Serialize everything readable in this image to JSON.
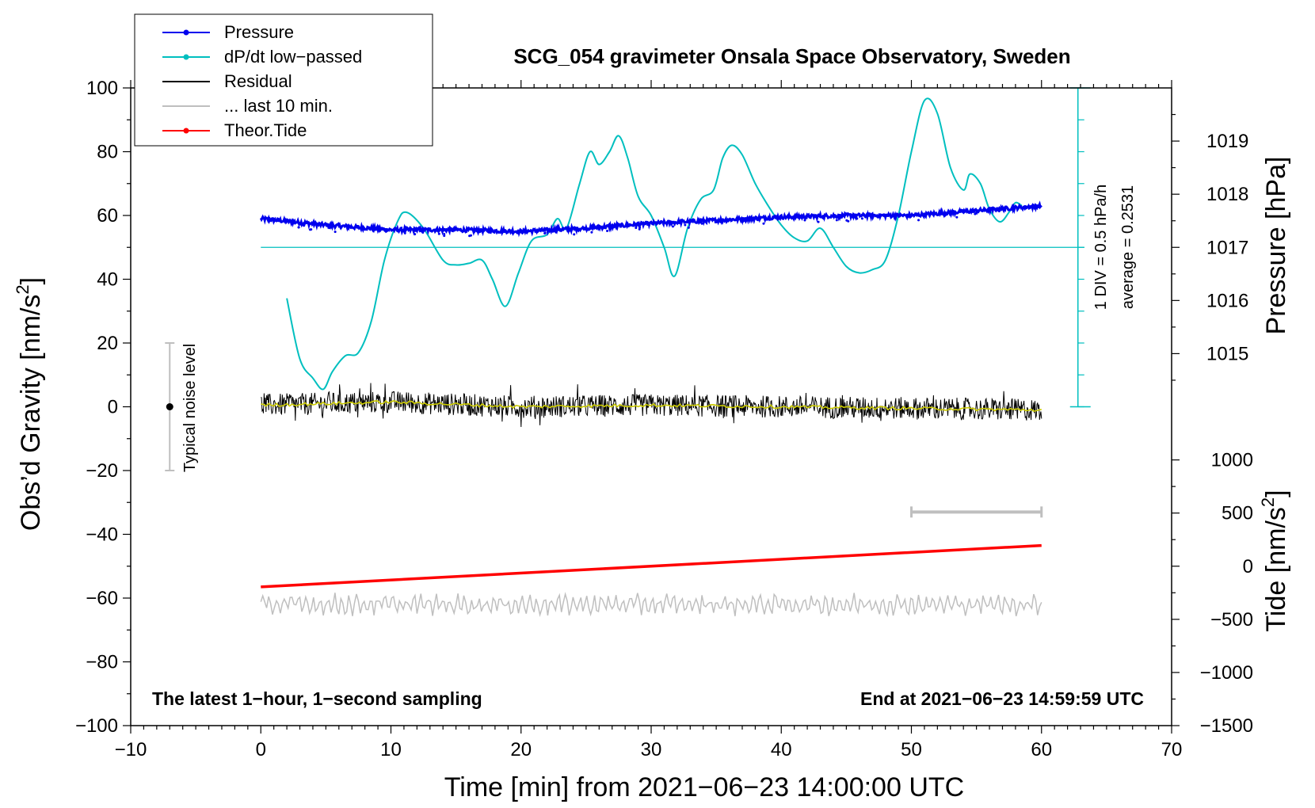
{
  "chart_data": {
    "type": "line",
    "title": "SCG_054 gravimeter Onsala Space Observatory, Sweden",
    "xlabel": "Time [min] from 2021−06−23 14:00:00 UTC",
    "ylabel_left": "Obs’d Gravity [nm/s",
    "ylabel_left_sup": "2",
    "ylabel_left_end": "]",
    "ylabel_right_pressure": "Pressure [hPa]",
    "ylabel_right_tide": "Tide [nm/s",
    "ylabel_right_tide_sup": "2",
    "ylabel_right_tide_end": "]",
    "xlim": [
      -10,
      70
    ],
    "ylim": [
      -100,
      100
    ],
    "x_ticks": [
      -10,
      0,
      10,
      20,
      30,
      40,
      50,
      60,
      70
    ],
    "x_tick_labels": [
      "−10",
      "0",
      "10",
      "20",
      "30",
      "40",
      "50",
      "60",
      "70"
    ],
    "y_ticks": [
      -100,
      -80,
      -60,
      -40,
      -20,
      0,
      20,
      40,
      60,
      80,
      100
    ],
    "y_tick_labels": [
      "−100",
      "−80",
      "−60",
      "−40",
      "−20",
      "0",
      "20",
      "40",
      "60",
      "80",
      "100"
    ],
    "pressure_axis": {
      "ticks": [
        1015,
        1016,
        1017,
        1018,
        1019
      ],
      "tick_labels": [
        "1015",
        "1016",
        "1017",
        "1018",
        "1019"
      ],
      "value_at_gravity_0": 1014.0,
      "value_at_gravity_100": 1020.0
    },
    "tide_axis": {
      "ticks": [
        -1500,
        -1000,
        -500,
        0,
        500,
        1000
      ],
      "tick_labels": [
        "−1500",
        "−1000",
        "−500",
        "0",
        "500",
        "1000"
      ],
      "value_at_gravity_minus100": -1500,
      "value_at_gravity_0": 1500
    },
    "legend": [
      {
        "label": "Pressure",
        "color": "#0000ee",
        "marker": true
      },
      {
        "label": "dP/dt low−passed",
        "color": "#00bfbf",
        "marker": true
      },
      {
        "label": "Residual",
        "color": "#000000",
        "marker": false
      },
      {
        "label": "... last 10 min.",
        "color": "#bfbfbf",
        "marker": false
      },
      {
        "label": "Theor.Tide",
        "color": "#ff0000",
        "marker": true
      }
    ],
    "series": [
      {
        "name": "Pressure",
        "color": "#0000ee",
        "x": [
          0,
          5,
          10,
          15,
          20,
          25,
          30,
          35,
          40,
          45,
          50,
          55,
          60
        ],
        "y": [
          59,
          57,
          55.5,
          55.5,
          55,
          56,
          57.5,
          58.5,
          59.5,
          60,
          60,
          61.5,
          63
        ]
      },
      {
        "name": "dP/dt low−passed",
        "color": "#00bfbf",
        "x": [
          2,
          3,
          4,
          4.8,
          5.5,
          6.5,
          7.5,
          8.5,
          9.5,
          10.5,
          11.2,
          12.5,
          14,
          15,
          16,
          17,
          17.8,
          18.8,
          19.8,
          20.8,
          22,
          22.8,
          23.5,
          24.5,
          25.3,
          26,
          26.8,
          27.5,
          28.2,
          29,
          30,
          31,
          31.8,
          32.8,
          33.8,
          34.8,
          35.5,
          36.2,
          37,
          38,
          39,
          40,
          41,
          42,
          43,
          44,
          45,
          46,
          47,
          48,
          49,
          50,
          51,
          52,
          53,
          54,
          54.5,
          55.3,
          56,
          56.8,
          57.5,
          58,
          58.5
        ],
        "y": [
          34,
          15,
          9,
          5.5,
          11,
          16,
          17,
          27,
          46,
          58,
          61,
          56,
          46,
          44.5,
          45,
          46,
          40,
          31.5,
          42,
          52,
          54,
          59,
          56,
          70,
          80,
          76,
          80,
          85,
          78,
          66,
          60,
          50,
          41,
          56,
          65,
          68,
          78,
          82,
          79,
          70,
          63,
          57,
          53,
          52,
          56,
          50,
          44,
          42,
          43,
          46,
          60,
          80,
          96,
          92,
          75,
          68,
          73,
          70,
          62,
          58,
          61,
          64,
          63
        ]
      },
      {
        "name": "Residual",
        "color": "#000000",
        "x": [
          0,
          10,
          20,
          30,
          40,
          50,
          60
        ],
        "y": [
          0.5,
          1.5,
          0,
          0.5,
          0,
          -0.5,
          -1
        ]
      },
      {
        "name": "... last 10 min.",
        "color": "#bfbfbf",
        "x": [
          0,
          60
        ],
        "y": [
          -62,
          -62
        ]
      },
      {
        "name": "Theor.Tide",
        "color": "#ff0000",
        "x": [
          0,
          60
        ],
        "y": [
          -56.5,
          -43.5
        ]
      }
    ],
    "dpdt_reference": {
      "zero_level_gravity": 50,
      "scale_label": "1 DIV = 0.5 hPa/h",
      "average_label": "average = 0.2531"
    },
    "noise_bar": {
      "label": "Typical noise level",
      "x": -7,
      "y_center": 0,
      "y_low": -20,
      "y_high": 20
    },
    "ten_minute_bar": {
      "x_start": 50,
      "x_end": 60,
      "y": -33
    },
    "footer_left": "The latest 1−hour, 1−second sampling",
    "footer_right": "End at 2021−06−23 14:59:59 UTC"
  }
}
